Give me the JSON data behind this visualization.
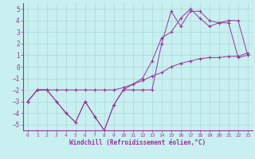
{
  "xlabel": "Windchill (Refroidissement éolien,°C)",
  "bg_color": "#c8f0f0",
  "grid_color": "#a8d8d8",
  "line_color": "#993399",
  "xlim": [
    -0.5,
    23.5
  ],
  "ylim": [
    -5.5,
    5.5
  ],
  "xticks": [
    0,
    1,
    2,
    3,
    4,
    5,
    6,
    7,
    8,
    9,
    10,
    11,
    12,
    13,
    14,
    15,
    16,
    17,
    18,
    19,
    20,
    21,
    22,
    23
  ],
  "yticks": [
    -5,
    -4,
    -3,
    -2,
    -1,
    0,
    1,
    2,
    3,
    4,
    5
  ],
  "line1_x": [
    0,
    1,
    2,
    3,
    4,
    5,
    6,
    7,
    8,
    9,
    10,
    11,
    12,
    13,
    14,
    15,
    16,
    17,
    18,
    19,
    20,
    21,
    22,
    23
  ],
  "line1_y": [
    -3.0,
    -2.0,
    -2.0,
    -3.0,
    -4.0,
    -4.8,
    -3.0,
    -4.3,
    -5.5,
    -3.3,
    -2.0,
    -2.0,
    -2.0,
    -2.0,
    2.0,
    4.8,
    3.5,
    4.8,
    4.8,
    4.0,
    3.8,
    4.0,
    4.0,
    1.0
  ],
  "line2_x": [
    0,
    1,
    2,
    3,
    4,
    5,
    6,
    7,
    8,
    9,
    10,
    11,
    12,
    13,
    14,
    15,
    16,
    17,
    18,
    19,
    20,
    21,
    22,
    23
  ],
  "line2_y": [
    -3.0,
    -2.0,
    -2.0,
    -3.0,
    -4.0,
    -4.8,
    -3.0,
    -4.3,
    -5.5,
    -3.3,
    -2.0,
    -1.5,
    -1.0,
    0.5,
    2.5,
    3.0,
    4.2,
    5.0,
    4.2,
    3.5,
    3.8,
    3.8,
    0.8,
    1.0
  ],
  "line3_x": [
    0,
    1,
    2,
    3,
    4,
    5,
    6,
    7,
    8,
    9,
    10,
    11,
    12,
    13,
    14,
    15,
    16,
    17,
    18,
    19,
    20,
    21,
    22,
    23
  ],
  "line3_y": [
    -3.0,
    -2.0,
    -2.0,
    -2.0,
    -2.0,
    -2.0,
    -2.0,
    -2.0,
    -2.0,
    -2.0,
    -1.8,
    -1.5,
    -1.2,
    -0.8,
    -0.5,
    0.0,
    0.3,
    0.5,
    0.7,
    0.8,
    0.8,
    0.9,
    0.9,
    1.2
  ]
}
